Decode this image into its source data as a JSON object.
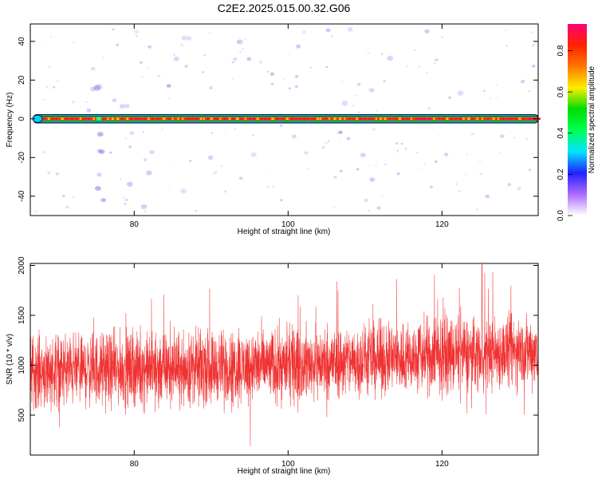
{
  "title": "C2E2.2025.015.00.32.G06",
  "colors": {
    "snr_line": "#f03232",
    "spectrum_blob": "#c8b4f5",
    "band_border": "#000000"
  },
  "chart_data": [
    {
      "type": "heatmap",
      "name": "spectrogram",
      "xlabel": "Height of straight line (km)",
      "ylabel": "Frequency (Hz)",
      "xlim": [
        66.5,
        132.5
      ],
      "ylim": [
        -50,
        49
      ],
      "x_ticks": [
        80,
        100,
        120
      ],
      "y_ticks": [
        -40,
        -20,
        0,
        20,
        40
      ],
      "grid": false,
      "dominant_band": {
        "frequency_hz": 0,
        "halfwidth_hz": 1.5,
        "amplitude": 0.85
      },
      "peak_point": {
        "x": 75.4,
        "frequency_hz": 0
      },
      "colorbar": {
        "label": "Normalized spectral amplitude",
        "ticks": [
          0.0,
          0.2,
          0.4,
          0.6,
          0.8
        ],
        "range": [
          0.0,
          0.93
        ],
        "colormap": [
          "#ffffff",
          "#ad6bff",
          "#2222ff",
          "#00e5ff",
          "#00ff55",
          "#00dd00",
          "#ffee00",
          "#ff7700",
          "#ff2200",
          "#ff0077"
        ]
      }
    },
    {
      "type": "line",
      "name": "snr",
      "xlabel": "Height of straight line (km)",
      "ylabel": "SNR (10 * v/v)",
      "xlim": [
        66.5,
        132.5
      ],
      "ylim": [
        100,
        2020
      ],
      "x_ticks": [
        80,
        100,
        120
      ],
      "y_ticks": [
        500,
        1000,
        1500,
        2000
      ],
      "grid": false,
      "series": [
        {
          "color": "#f03232",
          "mean_trend": [
            [
              66.5,
              950
            ],
            [
              80,
              960
            ],
            [
              100,
              1000
            ],
            [
              120,
              1100
            ],
            [
              132.5,
              1150
            ]
          ],
          "spread": 280,
          "range": [
            160,
            2020
          ],
          "peak": [
            125.2,
            2010
          ],
          "n_points": 3300
        }
      ]
    }
  ]
}
